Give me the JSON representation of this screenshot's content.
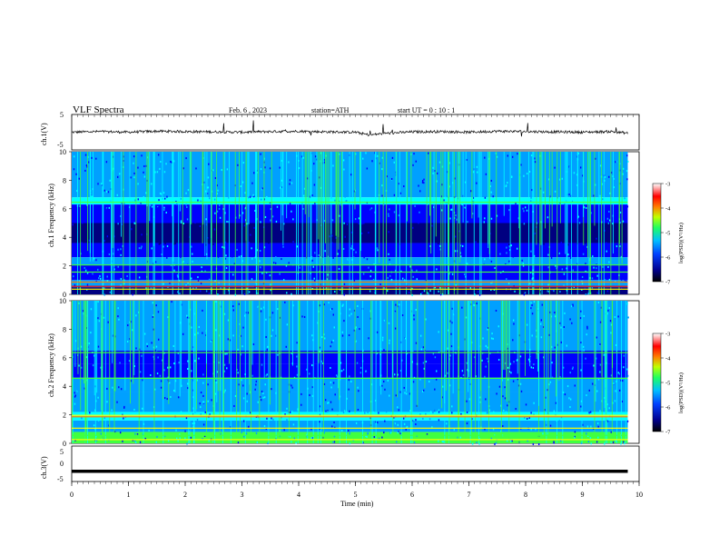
{
  "header": {
    "title": "VLF Spectra",
    "date": "Feb. 6 , 2023",
    "station": "station=ATH",
    "start_ut": "start UT = 0 : 10 : 1"
  },
  "chart_data": [
    {
      "type": "line",
      "panel": "ch1-waveform",
      "ylabel": "ch.1(V)",
      "ylim": [
        -5,
        5
      ],
      "y_ticks": [
        "5",
        "-5"
      ],
      "xlim": [
        0,
        10
      ],
      "x": [
        0,
        0.5,
        1,
        1.5,
        2,
        2.5,
        3,
        3.5,
        4,
        4.5,
        5,
        5.25,
        5.5,
        6,
        6.5,
        7,
        7.5,
        8,
        8.5,
        9,
        9.5,
        9.8
      ],
      "values": [
        0,
        0.2,
        0,
        0.3,
        0.2,
        0.1,
        0,
        0.2,
        0.3,
        0.1,
        0,
        -0.9,
        -0.4,
        0.1,
        0.2,
        0,
        0.3,
        0.2,
        0.1,
        0,
        0.2,
        -0.3
      ]
    },
    {
      "type": "heatmap",
      "panel": "ch1-spectrogram",
      "ylabel": "ch.1 Frequency (kHz)",
      "ylim": [
        0,
        10
      ],
      "y_ticks": [
        "0",
        "2",
        "4",
        "6",
        "8",
        "10"
      ],
      "xlim": [
        0,
        10
      ],
      "colorbar": {
        "label": "log(PSD)(V²/Hz)",
        "ticks": [
          "-3",
          "-4",
          "-5",
          "-6",
          "-7"
        ],
        "range": [
          -7,
          -3
        ]
      }
    },
    {
      "type": "heatmap",
      "panel": "ch2-spectrogram",
      "ylabel": "ch.2 Frequency (kHz)",
      "ylim": [
        0,
        10
      ],
      "y_ticks": [
        "0",
        "2",
        "4",
        "6",
        "8",
        "10"
      ],
      "xlim": [
        0,
        10
      ],
      "colorbar": {
        "label": "log(PSD)(V²/Hz)",
        "ticks": [
          "-3",
          "-4",
          "-5",
          "-6",
          "-7"
        ],
        "range": [
          -7,
          -3
        ]
      }
    },
    {
      "type": "line",
      "panel": "ch3-waveform",
      "ylabel": "ch.3(V)",
      "ylim": [
        -5,
        5
      ],
      "y_ticks": [
        "5",
        "0",
        "-5"
      ],
      "xlim": [
        0,
        10
      ],
      "x": [
        0,
        9.8
      ],
      "values": [
        -2.5,
        -2.5
      ]
    }
  ],
  "x_axis": {
    "label": "Time (min)",
    "ticks": [
      "0",
      "1",
      "2",
      "3",
      "4",
      "5",
      "6",
      "7",
      "8",
      "9",
      "10"
    ]
  },
  "colors": {
    "waveform": "#000000",
    "spec_background": "#00008b",
    "colormap": [
      "#000000",
      "#000080",
      "#0000ff",
      "#00a0ff",
      "#00ffff",
      "#40ff40",
      "#ffff00",
      "#ff8000",
      "#ff0000",
      "#ffffff"
    ]
  }
}
